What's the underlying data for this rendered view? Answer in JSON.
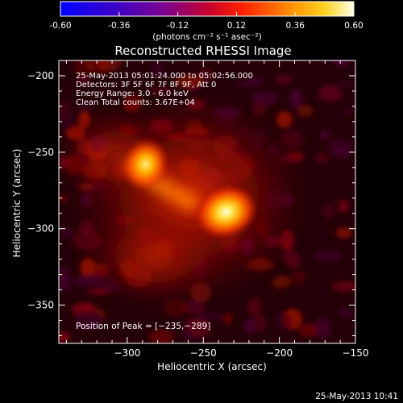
{
  "colorbar": {
    "ticks": [
      "-0.60",
      "-0.36",
      "-0.12",
      "0.12",
      "0.36",
      "0.60"
    ],
    "unit_label": "(photons cm⁻² s⁻¹ asec⁻²)",
    "range": [
      -0.6,
      0.6
    ]
  },
  "chart_data": {
    "type": "heatmap",
    "title": "Reconstructed RHESSI Image",
    "xlabel": "Heliocentric X (arcsec)",
    "ylabel": "Heliocentric Y (arcsec)",
    "xlim": [
      -345,
      -150
    ],
    "ylim": [
      -375,
      -190
    ],
    "xticks": [
      -300,
      -250,
      -200,
      -150
    ],
    "yticks": [
      -200,
      -250,
      -300,
      -350
    ],
    "xtick_labels": [
      "−300",
      "−250",
      "−200",
      "−150"
    ],
    "ytick_labels": [
      "−200",
      "−250",
      "−300",
      "−350"
    ],
    "annotations": [
      "25-May-2013 05:01:24.000 to 05:02:56.000",
      "Detectors: 3F 5F 6F 7F 8F 9F, Att 0",
      "Energy Range: 3.0 - 6.0 keV",
      "Clean    Total counts: 3.67E+04"
    ],
    "peak_label": "Position of Peak = [−235,−289]",
    "sources": [
      {
        "x": -235,
        "y": -289,
        "peak": 1.0
      },
      {
        "x": -288,
        "y": -258,
        "peak": 0.75
      }
    ],
    "grid": false,
    "colormap": "hot"
  },
  "footer": {
    "timestamp": "25-May-2013 10:41"
  }
}
